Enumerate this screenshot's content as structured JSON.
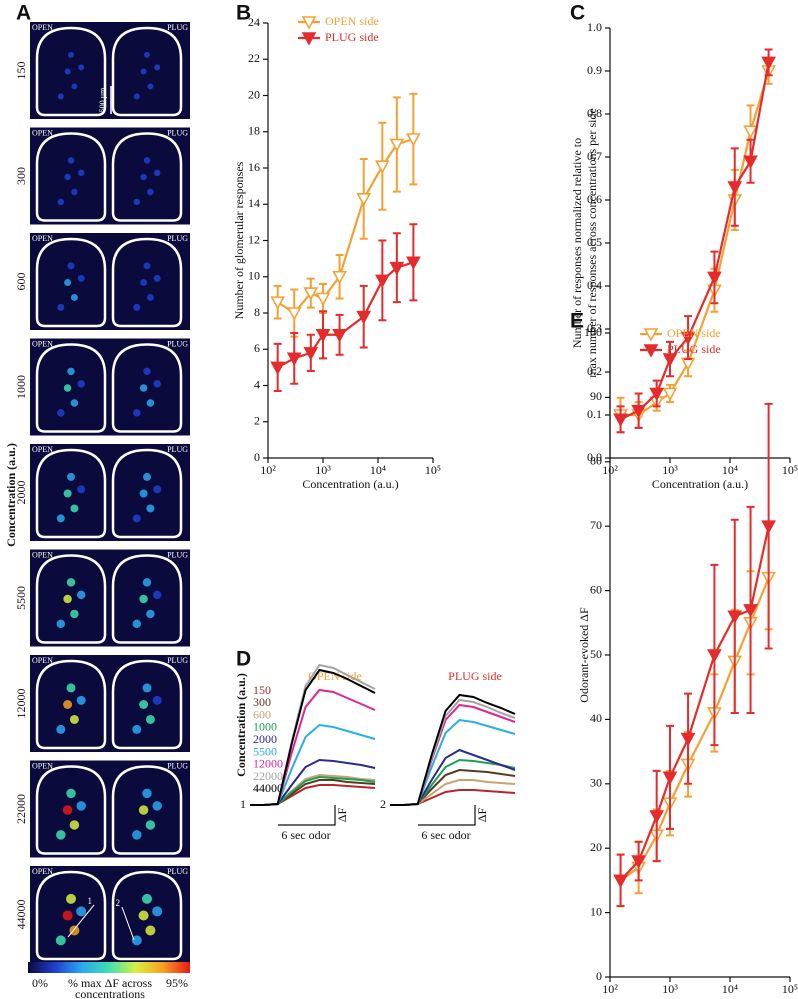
{
  "panel_a": {
    "panel": "A",
    "ylabel": "Concentration (a.u.)",
    "left_label": "OPEN",
    "right_label": "PLUG",
    "rows": [
      "150",
      "300",
      "600",
      "1000",
      "2000",
      "5500",
      "12000",
      "22000",
      "44000"
    ],
    "scale_bar": "500 µm",
    "cell_markers": [
      "1",
      "2"
    ],
    "colorbar": {
      "min_label": "0%",
      "max_label": "95%",
      "label": [
        "% max ΔF across",
        "concentrations"
      ],
      "colors": [
        "#0a0a3c",
        "#1f3fd0",
        "#2aa8f0",
        "#3fe0b0",
        "#d8f040",
        "#f8a020",
        "#e81818"
      ]
    }
  },
  "chart_data": [
    {
      "type": "line",
      "panel": "B",
      "xlabel": "Concentration (a.u.)",
      "ylabel": "Number of glomerular responses",
      "x": [
        150,
        300,
        600,
        1000,
        2000,
        5500,
        12000,
        22000,
        44000
      ],
      "xlog": true,
      "xlim": [
        100,
        100000
      ],
      "xticks": [
        {
          "value": 100,
          "label": "10²"
        },
        {
          "value": 1000,
          "label": "10³"
        },
        {
          "value": 10000,
          "label": "10⁴"
        },
        {
          "value": 100000,
          "label": "10⁵"
        }
      ],
      "ylim": [
        0,
        24
      ],
      "yticks": [
        0,
        2,
        4,
        6,
        8,
        10,
        12,
        14,
        16,
        18,
        20,
        22,
        24
      ],
      "legend": "top-left",
      "series": [
        {
          "name": "OPEN side",
          "color": "#f5a033",
          "marker": "open",
          "values": [
            8.6,
            8.0,
            9.1,
            8.8,
            10.0,
            14.3,
            16.1,
            17.3,
            17.6
          ],
          "errors": [
            0.9,
            1.3,
            0.8,
            0.8,
            1.2,
            2.2,
            2.4,
            2.6,
            2.5
          ]
        },
        {
          "name": "PLUG side",
          "color": "#e52b2b",
          "marker": "filled",
          "values": [
            5.0,
            5.5,
            5.8,
            6.8,
            6.8,
            7.8,
            9.8,
            10.5,
            10.8
          ],
          "errors": [
            1.3,
            1.4,
            1.0,
            1.3,
            1.1,
            1.7,
            2.2,
            1.9,
            2.1
          ]
        }
      ]
    },
    {
      "type": "line",
      "panel": "C",
      "xlabel": "Concentration (a.u.)",
      "ylabel": [
        "Number of responses normalized relative to",
        "max number of responses across concentrations per side"
      ],
      "x": [
        150,
        300,
        600,
        1000,
        2000,
        5500,
        12000,
        22000,
        44000
      ],
      "xlog": true,
      "xlim": [
        100,
        100000
      ],
      "xticks": [
        {
          "value": 100,
          "label": "10²"
        },
        {
          "value": 1000,
          "label": "10³"
        },
        {
          "value": 10000,
          "label": "10⁴"
        },
        {
          "value": 100000,
          "label": "10⁵"
        }
      ],
      "ylim": [
        0,
        1
      ],
      "yticks": [
        {
          "value": 0,
          "label": "0.0"
        },
        0.1,
        0.2,
        0.3,
        0.4,
        0.5,
        0.6,
        0.7,
        0.8,
        0.9,
        {
          "value": 1,
          "label": "1.0"
        }
      ],
      "series": [
        {
          "color": "#f5a033",
          "marker": "open",
          "values": [
            0.1,
            0.1,
            0.13,
            0.15,
            0.22,
            0.39,
            0.6,
            0.76,
            0.9
          ],
          "errors": [
            0.04,
            0.03,
            0.02,
            0.02,
            0.03,
            0.05,
            0.07,
            0.06,
            0.03
          ]
        },
        {
          "color": "#e52b2b",
          "marker": "filled",
          "values": [
            0.09,
            0.11,
            0.15,
            0.23,
            0.28,
            0.42,
            0.63,
            0.69,
            0.92
          ],
          "errors": [
            0.03,
            0.04,
            0.03,
            0.04,
            0.05,
            0.06,
            0.09,
            0.05,
            0.03
          ]
        }
      ]
    },
    {
      "type": "trace",
      "panel": "D",
      "ylabel": "Concentration (a.u.)",
      "scale_x_label": "6 sec odor",
      "scale_y_label": "ΔF",
      "legend": [
        {
          "name": "150",
          "color": "#b3262b"
        },
        {
          "name": "300",
          "color": "#5a3a1e"
        },
        {
          "name": "600",
          "color": "#c9a26e"
        },
        {
          "name": "1000",
          "color": "#19a05a"
        },
        {
          "name": "2000",
          "color": "#2b2b8c"
        },
        {
          "name": "5500",
          "color": "#27b0e4"
        },
        {
          "name": "12000",
          "color": "#e3248e"
        },
        {
          "name": "22000",
          "color": "#a3a3a3"
        },
        {
          "name": "44000",
          "color": "#000000"
        }
      ],
      "groups": [
        {
          "title": "OPEN side",
          "color": "#f5a033",
          "label": "1",
          "series": [
            {
              "values": [
                0,
                0,
                1,
                9,
                17,
                20,
                20,
                19,
                18,
                17
              ]
            },
            {
              "values": [
                0,
                0,
                1,
                11,
                21,
                25,
                25,
                23,
                22,
                21
              ]
            },
            {
              "values": [
                0,
                0,
                1,
                14,
                26,
                30,
                29,
                28,
                26,
                25
              ]
            },
            {
              "values": [
                0,
                0,
                1,
                13,
                24,
                28,
                27,
                26,
                25,
                23
              ]
            },
            {
              "values": [
                0,
                0,
                1,
                20,
                38,
                45,
                44,
                42,
                40,
                37
              ]
            },
            {
              "values": [
                0,
                0,
                1,
                36,
                68,
                80,
                78,
                74,
                70,
                66
              ]
            },
            {
              "values": [
                0,
                0,
                1,
                52,
                98,
                115,
                113,
                107,
                101,
                95
              ]
            },
            {
              "values": [
                0,
                0,
                1,
                63,
                119,
                140,
                137,
                130,
                123,
                116
              ]
            },
            {
              "values": [
                0,
                0,
                1,
                61,
                115,
                135,
                132,
                126,
                119,
                112
              ]
            }
          ]
        },
        {
          "title": "PLUG side",
          "color": "#e52b2b",
          "label": "2",
          "series": [
            {
              "values": [
                0,
                0,
                1,
                7,
                13,
                15,
                15,
                14,
                13,
                12
              ]
            },
            {
              "values": [
                0,
                0,
                1,
                16,
                30,
                35,
                34,
                33,
                31,
                29
              ]
            },
            {
              "values": [
                0,
                0,
                1,
                11,
                21,
                25,
                25,
                23,
                22,
                21
              ]
            },
            {
              "values": [
                0,
                0,
                1,
                20,
                38,
                45,
                44,
                42,
                40,
                37
              ]
            },
            {
              "values": [
                0,
                0,
                1,
                25,
                47,
                55,
                50,
                45,
                40,
                35
              ]
            },
            {
              "values": [
                0,
                0,
                1,
                38,
                72,
                85,
                83,
                79,
                75,
                71
              ]
            },
            {
              "values": [
                0,
                0,
                1,
                45,
                85,
                100,
                98,
                93,
                88,
                83
              ]
            },
            {
              "values": [
                0,
                0,
                1,
                47,
                89,
                105,
                103,
                98,
                92,
                87
              ]
            },
            {
              "values": [
                0,
                0,
                1,
                50,
                94,
                110,
                108,
                102,
                97,
                91
              ]
            }
          ]
        }
      ]
    },
    {
      "type": "line",
      "panel": "E",
      "xlabel": "Concentration (a.u.)",
      "ylabel": "Odorant-evoked ΔF",
      "x": [
        150,
        300,
        600,
        1000,
        2000,
        5500,
        12000,
        22000,
        44000
      ],
      "xlog": true,
      "xlim": [
        100,
        100000
      ],
      "xticks": [
        {
          "value": 100,
          "label": "10²"
        },
        {
          "value": 1000,
          "label": "10³"
        },
        {
          "value": 10000,
          "label": "10⁴"
        },
        {
          "value": 100000,
          "label": "10⁵"
        }
      ],
      "ylim": [
        0,
        100
      ],
      "yticks": [
        0,
        10,
        20,
        30,
        40,
        50,
        60,
        70,
        80,
        90,
        100
      ],
      "legend": "top-left",
      "series": [
        {
          "name": "OPEN side",
          "color": "#f5a033",
          "marker": "open",
          "values": [
            15,
            17,
            22,
            27,
            33,
            41,
            49,
            55,
            62
          ],
          "errors": [
            4,
            4,
            4,
            5,
            5,
            6,
            8,
            8,
            8
          ]
        },
        {
          "name": "PLUG side",
          "color": "#e52b2b",
          "marker": "filled",
          "values": [
            15,
            18,
            25,
            31,
            37,
            50,
            56,
            57,
            70
          ],
          "errors": [
            4,
            3,
            7,
            8,
            7,
            14,
            15,
            16,
            19
          ]
        }
      ]
    }
  ]
}
